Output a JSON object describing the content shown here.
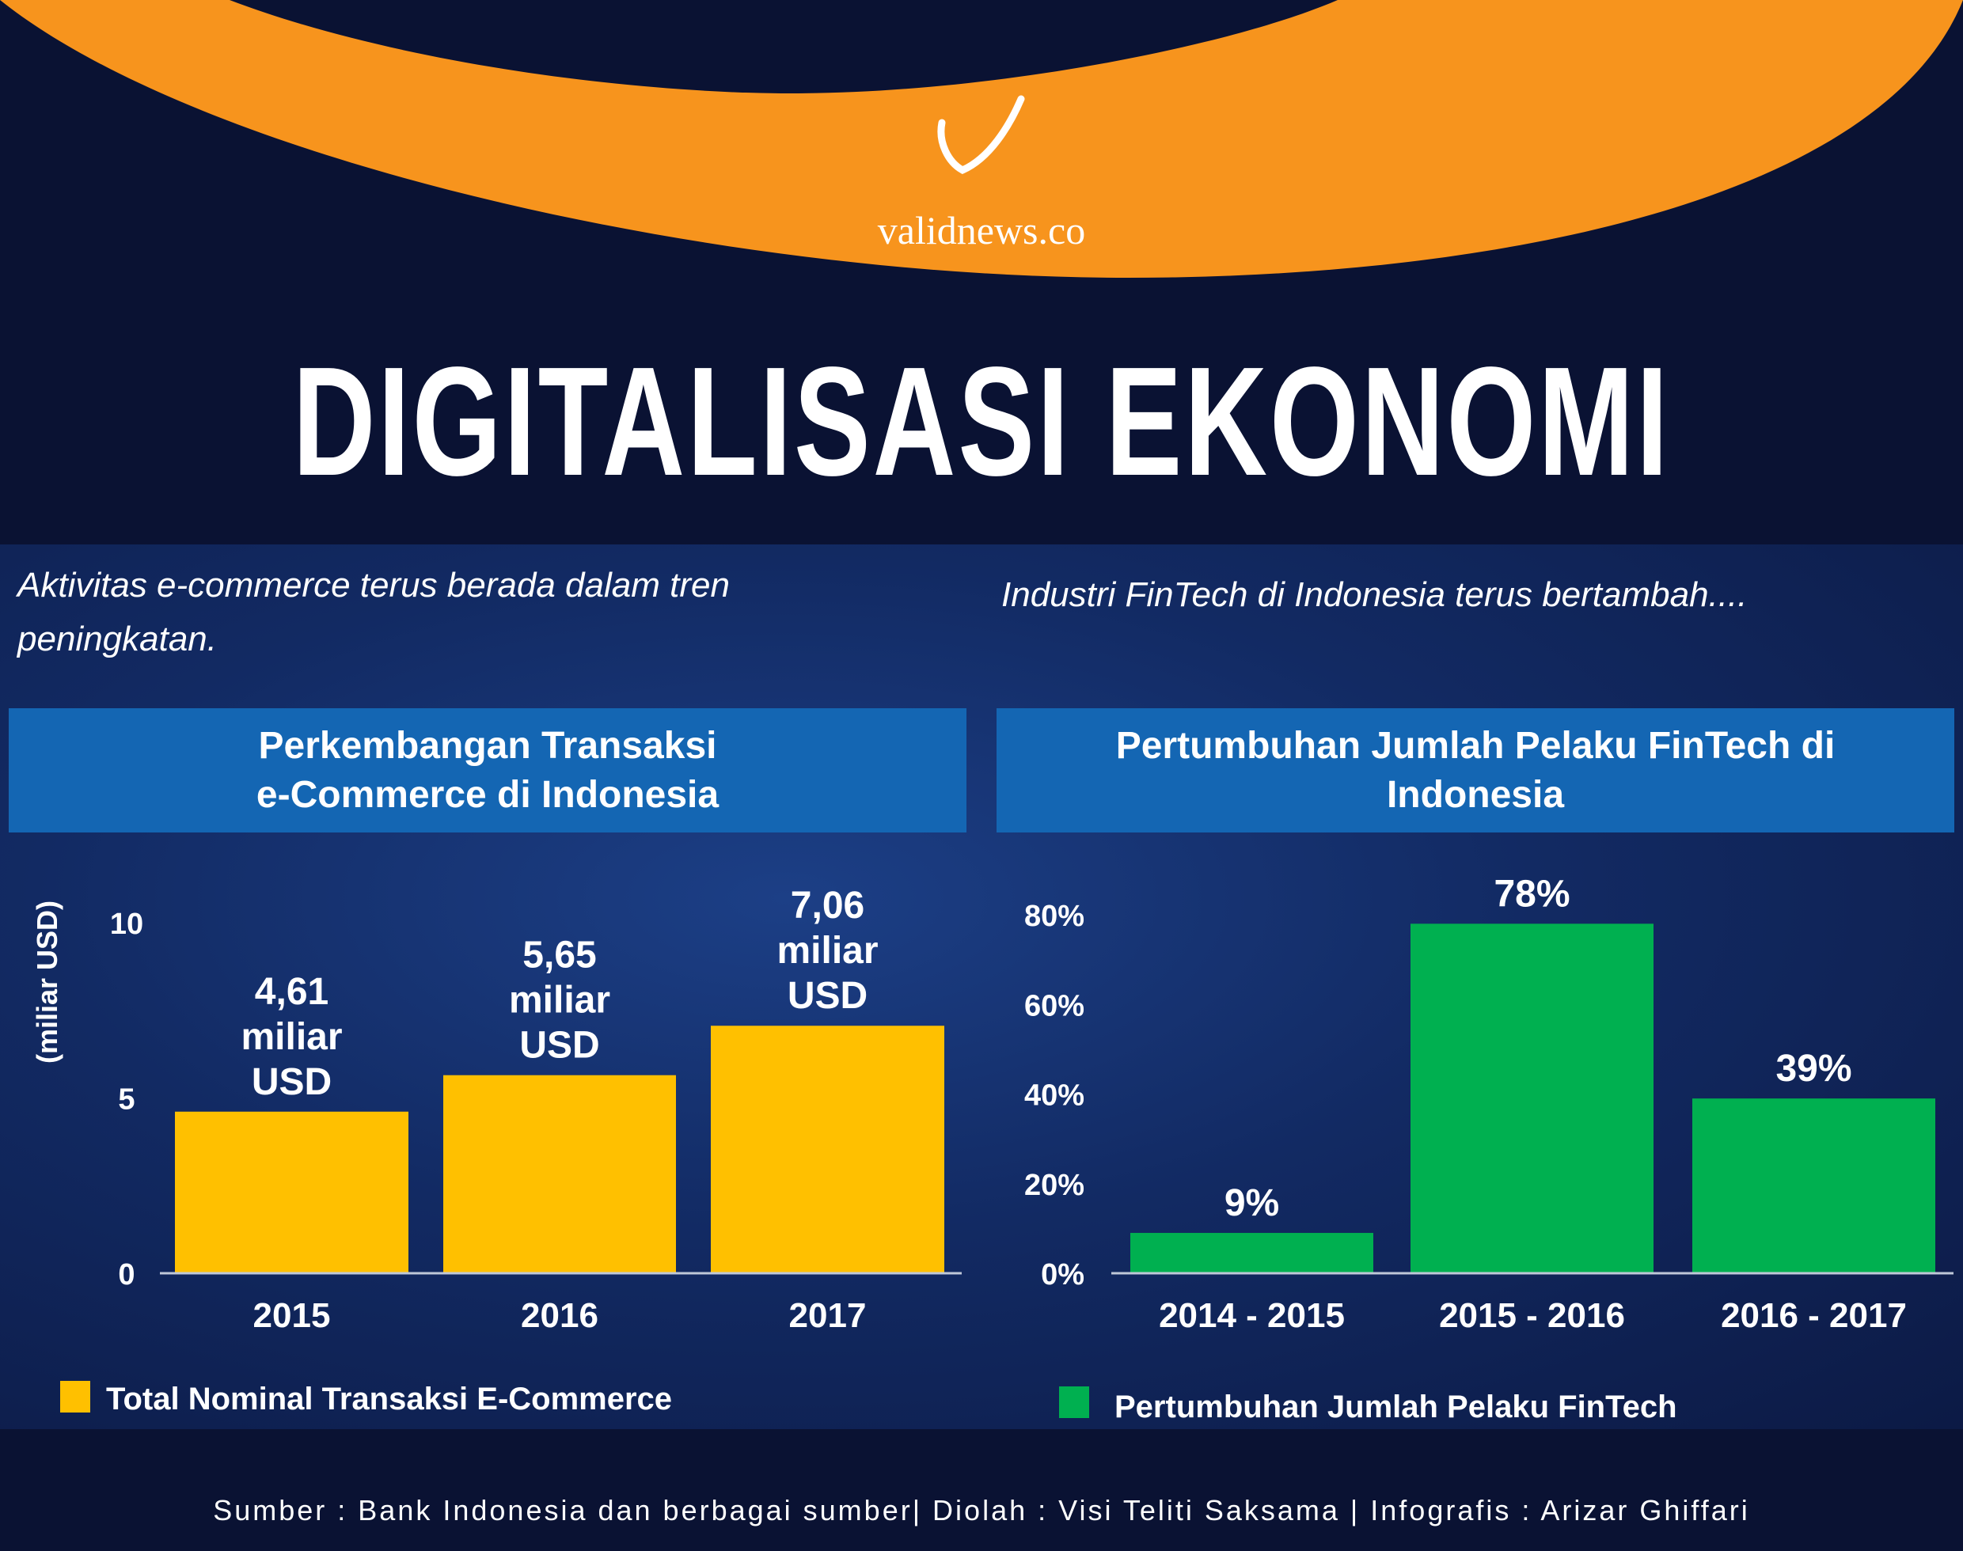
{
  "brand": {
    "name": "validnews.co",
    "accent": "#f7941d"
  },
  "title": "DIGITALISASI EKONOMI",
  "left_subtitle": [
    "Aktivitas e-commerce terus berada dalam tren",
    "peningkatan."
  ],
  "right_subtitle": "Industri FinTech di Indonesia terus bertambah....",
  "chart_data": [
    {
      "type": "bar",
      "title": "Perkembangan Transaksi e-Commerce di Indonesia",
      "title_lines": [
        "Perkembangan Transaksi",
        "e-Commerce di Indonesia"
      ],
      "categories": [
        "2015",
        "2016",
        "2017"
      ],
      "values": [
        4.61,
        5.65,
        7.06
      ],
      "data_labels": [
        [
          "4,61",
          "miliar",
          "USD"
        ],
        [
          "5,65",
          "miliar",
          "USD"
        ],
        [
          "7,06",
          "miliar",
          "USD"
        ]
      ],
      "ylabel": "(miliar USD)",
      "ylim": [
        0,
        10
      ],
      "yticks": [
        "0",
        "5",
        "10"
      ],
      "ytick_values": [
        0,
        5,
        10
      ],
      "color": "#ffc000",
      "legend": "Total Nominal Transaksi E-Commerce",
      "legend_placement": "bottom-left"
    },
    {
      "type": "bar",
      "title": "Pertumbuhan Jumlah Pelaku FinTech di Indonesia",
      "title_lines": [
        "Pertumbuhan Jumlah Pelaku FinTech di",
        "Indonesia"
      ],
      "categories": [
        "2014 - 2015",
        "2015 - 2016",
        "2016 - 2017"
      ],
      "values": [
        9,
        78,
        39
      ],
      "data_labels": [
        "9%",
        "78%",
        "39%"
      ],
      "ylabel": "",
      "ylim": [
        0,
        80
      ],
      "yticks": [
        "0%",
        "20%",
        "40%",
        "60%",
        "80%"
      ],
      "ytick_values": [
        0,
        20,
        40,
        60,
        80
      ],
      "color": "#00b050",
      "legend": "Pertumbuhan Jumlah Pelaku FinTech",
      "legend_placement": "bottom-left"
    }
  ],
  "footer": "Sumber : Bank Indonesia dan berbagai sumber| Diolah : Visi Teliti Saksama | Infografis : Arizar Ghiffari"
}
